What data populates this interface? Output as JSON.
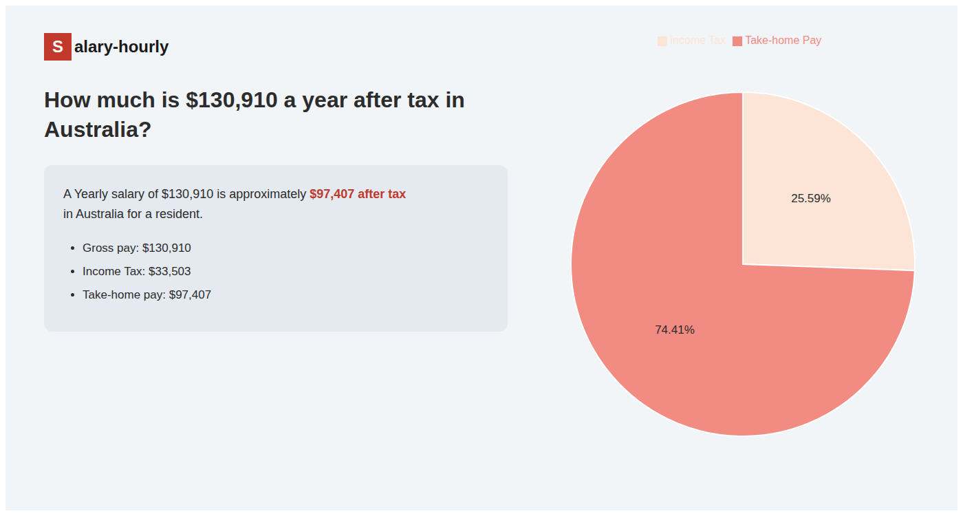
{
  "chart_data": {
    "type": "pie",
    "title": "How much is $130,910 a year after tax in\nAustralia?",
    "annotations": [
      {
        "text": "S",
        "color": "#c0392b"
      },
      {
        "text": "alary-hourly"
      },
      {
        "text": "A Yearly salary of $130,910 is approximately "
      },
      {
        "text": "$97,407 after tax",
        "color": "#c0392b"
      },
      {
        "text": "in Australia for a resident."
      },
      {
        "text": "Gross pay: $130,910"
      },
      {
        "text": "Income Tax: $33,503"
      },
      {
        "text": "Take-home pay: $97,407"
      }
    ],
    "categories": [
      "Income Tax",
      "Take-home Pay"
    ],
    "values": [
      25.59,
      74.41
    ],
    "value_labels": [
      "25.59%",
      "74.41%"
    ],
    "colors": [
      "#fce4d6",
      "#f28b82"
    ],
    "data_labels": true,
    "legend": "top"
  }
}
